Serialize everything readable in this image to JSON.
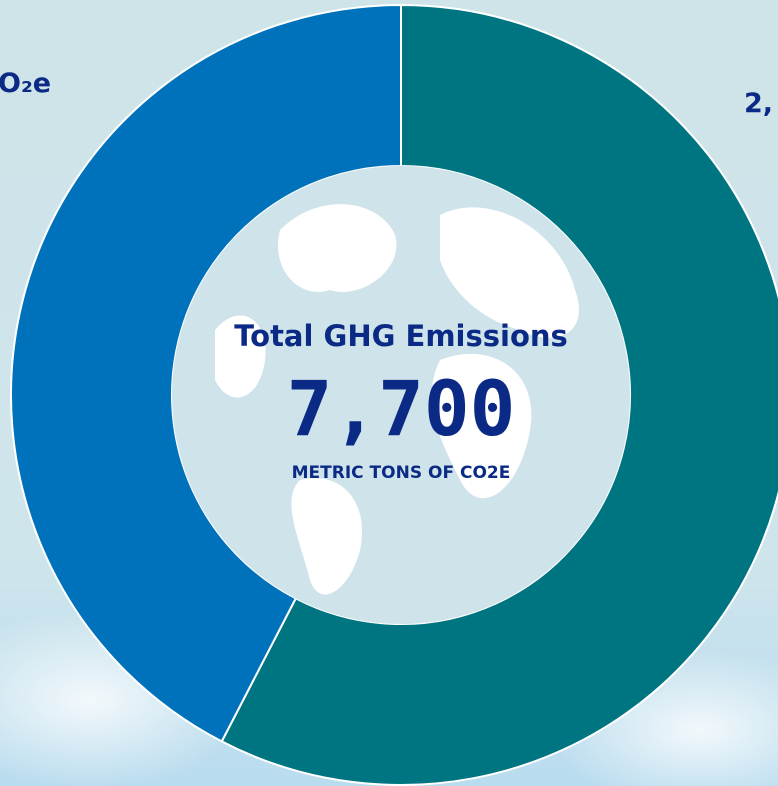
{
  "chart_data": {
    "type": "donut",
    "title": "Total GHG Emissions",
    "total": {
      "value": 7700,
      "label": "7,700"
    },
    "total_unit": "METRIC TONS OF CO2E",
    "values": [
      57.6,
      42.4
    ],
    "colors": [
      "#007582",
      "#0072bc"
    ],
    "annotations": [
      "O₂e",
      "2,"
    ]
  }
}
